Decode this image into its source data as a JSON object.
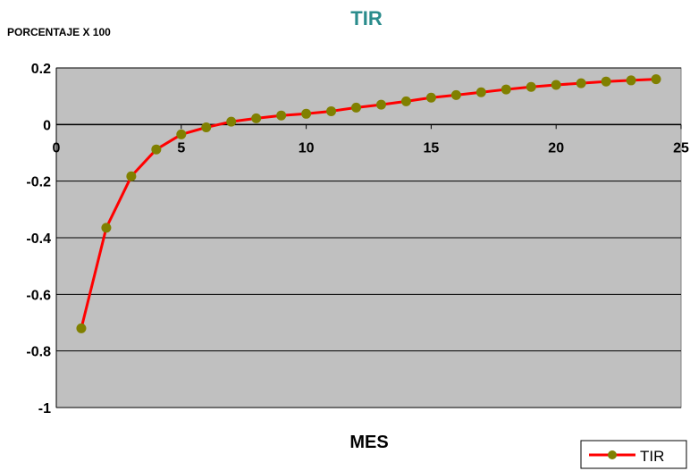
{
  "chart_data": {
    "type": "line",
    "title": "TIR",
    "ylabel": "PORCENTAJE X 100",
    "xlabel": "MES",
    "xlim": [
      0,
      25
    ],
    "ylim": [
      -1,
      0.2
    ],
    "x_ticks": [
      "0",
      "5",
      "10",
      "15",
      "20",
      "25"
    ],
    "y_ticks": [
      "0.2",
      "0",
      "-0.2",
      "-0.4",
      "-0.6",
      "-0.8",
      "-1"
    ],
    "grid": "horizontal",
    "legend_position": "bottom-right",
    "colors": {
      "plot_bg": "#c0c0c0",
      "line": "#ff0000",
      "marker": "#808000",
      "title": "#2a8c8c"
    },
    "series": [
      {
        "name": "TIR",
        "x": [
          1,
          2,
          3,
          4,
          5,
          6,
          7,
          8,
          9,
          10,
          11,
          12,
          13,
          14,
          15,
          16,
          17,
          18,
          19,
          20,
          21,
          22,
          23,
          24
        ],
        "values": [
          -0.72,
          -0.365,
          -0.183,
          -0.088,
          -0.035,
          -0.01,
          0.01,
          0.022,
          0.032,
          0.038,
          0.047,
          0.06,
          0.07,
          0.082,
          0.095,
          0.104,
          0.114,
          0.124,
          0.133,
          0.14,
          0.146,
          0.152,
          0.156,
          0.16
        ]
      }
    ]
  }
}
